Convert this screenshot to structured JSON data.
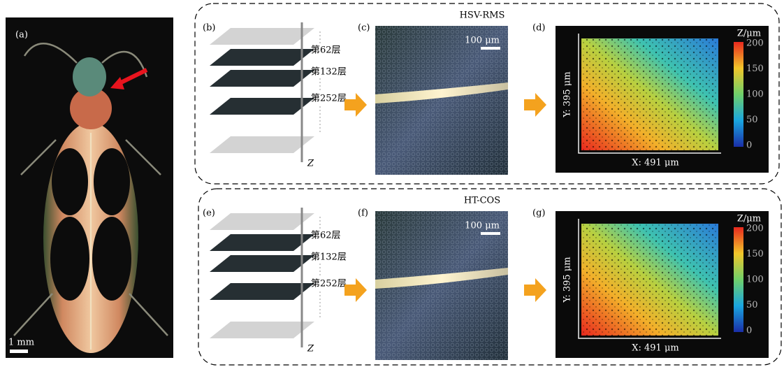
{
  "beetle": {
    "label": "(a)",
    "scale_bar": "1 mm"
  },
  "rows": [
    {
      "method": "HSV-RMS",
      "stack": {
        "label": "(b)",
        "layers": [
          "第62层",
          "第132层",
          "第252层"
        ],
        "axis": "Z"
      },
      "image": {
        "label": "(c)",
        "scale_bar": "100 μm"
      },
      "height_map": {
        "label": "(d)",
        "z_title": "Z/μm",
        "z_ticks": [
          0,
          50,
          100,
          150,
          200
        ],
        "x_label": "X: 491 μm",
        "y_label": "Y: 395 μm"
      }
    },
    {
      "method": "HT-COS",
      "stack": {
        "label": "(e)",
        "layers": [
          "第62层",
          "第132层",
          "第252层"
        ],
        "axis": "Z"
      },
      "image": {
        "label": "(f)",
        "scale_bar": "100 μm"
      },
      "height_map": {
        "label": "(g)",
        "z_title": "Z/μm",
        "z_ticks": [
          0,
          50,
          100,
          150,
          200
        ],
        "x_label": "X: 491 μm",
        "y_label": "Y: 395 μm"
      }
    }
  ]
}
